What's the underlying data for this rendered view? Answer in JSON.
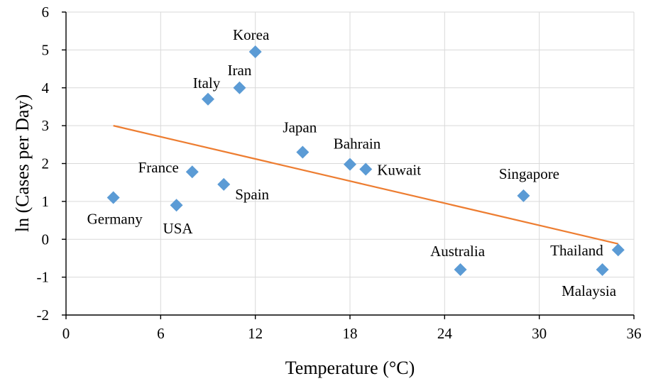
{
  "chart_data": {
    "type": "scatter",
    "xlabel": "Temperature (°C)",
    "ylabel": "ln (Cases per Day)",
    "xlim": [
      0,
      36
    ],
    "ylim": [
      -2,
      6
    ],
    "xticks": [
      0,
      6,
      12,
      18,
      24,
      30,
      36
    ],
    "yticks": [
      -2,
      -1,
      0,
      1,
      2,
      3,
      4,
      5,
      6
    ],
    "grid": true,
    "marker": "diamond",
    "marker_color": "#5b9bd5",
    "trendline_color": "#ed7d31",
    "points": [
      {
        "label": "Korea",
        "x": 12,
        "y": 4.95
      },
      {
        "label": "Iran",
        "x": 11,
        "y": 4.0
      },
      {
        "label": "Italy",
        "x": 9,
        "y": 3.7
      },
      {
        "label": "Japan",
        "x": 15,
        "y": 2.3
      },
      {
        "label": "Bahrain",
        "x": 18,
        "y": 1.98
      },
      {
        "label": "Kuwait",
        "x": 19,
        "y": 1.85
      },
      {
        "label": "France",
        "x": 8,
        "y": 1.78
      },
      {
        "label": "Spain",
        "x": 10,
        "y": 1.45
      },
      {
        "label": "Germany",
        "x": 3,
        "y": 1.1
      },
      {
        "label": "USA",
        "x": 7,
        "y": 0.9
      },
      {
        "label": "Singapore",
        "x": 29,
        "y": 1.15
      },
      {
        "label": "Australia",
        "x": 25,
        "y": -0.8
      },
      {
        "label": "Thailand",
        "x": 35,
        "y": -0.28
      },
      {
        "label": "Malaysia",
        "x": 34,
        "y": -0.8
      }
    ],
    "trendline": {
      "x": [
        3,
        35
      ],
      "y": [
        3.0,
        -0.12
      ]
    }
  }
}
